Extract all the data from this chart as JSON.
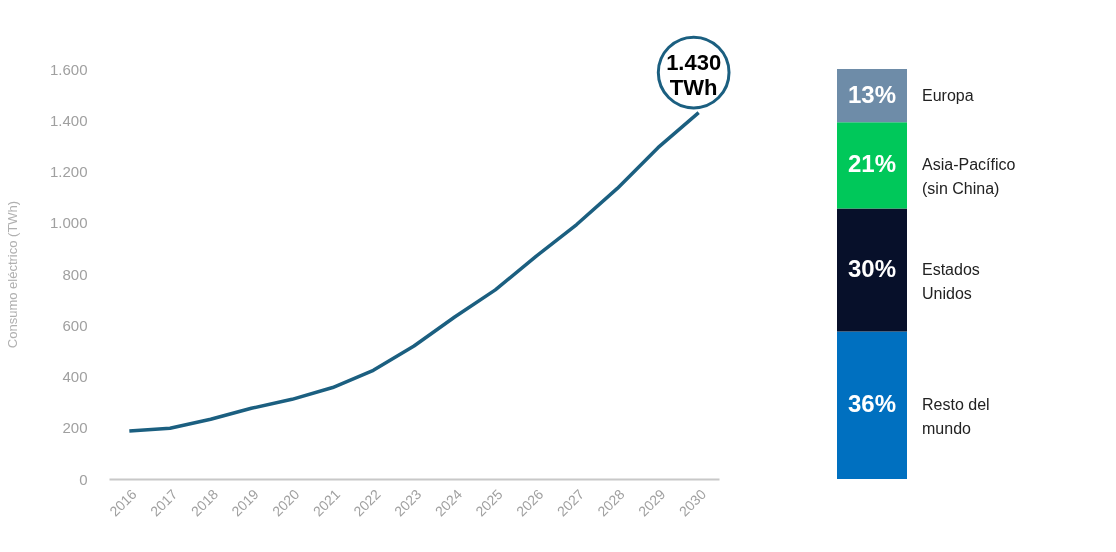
{
  "chart_data": [
    {
      "type": "line",
      "ylabel": "Consumo eléctrico (TWh)",
      "categories": [
        "2016",
        "2017",
        "2018",
        "2019",
        "2020",
        "2021",
        "2022",
        "2023",
        "2024",
        "2025",
        "2026",
        "2027",
        "2028",
        "2029",
        "2030"
      ],
      "series": [
        {
          "color": "#1b5f80",
          "values": [
            187,
            198,
            233,
            276,
            311,
            357,
            424,
            519,
            632,
            738,
            869,
            993,
            1134,
            1293,
            1430
          ]
        }
      ],
      "ylim": [
        0,
        1600
      ],
      "yticks": [
        0,
        200,
        400,
        600,
        800,
        {
          "value": 1000,
          "label": "1.000"
        },
        {
          "value": 1200,
          "label": "1.200"
        },
        {
          "value": 1400,
          "label": "1.400"
        },
        {
          "value": 1600,
          "label": "1.600"
        }
      ],
      "annotations": [
        {
          "text": "1.430\nTWh",
          "x": "2030",
          "y": 1430
        }
      ],
      "grid": false,
      "legend": false,
      "marker": "none",
      "line_style": "solid"
    },
    {
      "type": "bar",
      "stacked": true,
      "categories": [
        null
      ],
      "series": [
        {
          "name": "Resto del mundo",
          "color": "#0070c0",
          "values": [
            36
          ],
          "value_labels": [
            "36%"
          ]
        },
        {
          "name": "Estados Unidos",
          "color": "#07102a",
          "values": [
            30
          ],
          "value_labels": [
            "30%"
          ]
        },
        {
          "name": "Asia-Pacífico (sin China)",
          "color": "#00c85a",
          "values": [
            21
          ],
          "value_labels": [
            "21%"
          ]
        },
        {
          "name": "Europa",
          "color": "#6e8ca8",
          "values": [
            13
          ],
          "value_labels": [
            "13%"
          ]
        }
      ],
      "legend": false
    }
  ]
}
